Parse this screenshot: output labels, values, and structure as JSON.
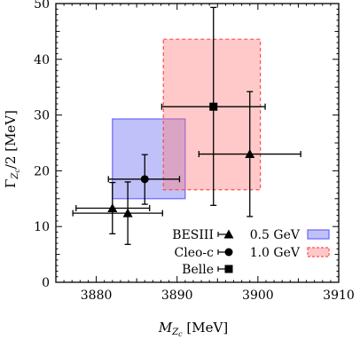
{
  "chart_data": {
    "type": "scatter",
    "xlabel": {
      "main": "M",
      "sub": "Z",
      "subsub": "c",
      "unit": " [MeV]"
    },
    "ylabel": {
      "main": "Γ",
      "sub": "Z",
      "subsub": "c",
      "tail": "/2 [MeV]"
    },
    "xlim": [
      3875,
      3910
    ],
    "ylim": [
      0,
      50
    ],
    "xticks": [
      3880,
      3890,
      3900,
      3910
    ],
    "yticks": [
      0,
      10,
      20,
      30,
      40,
      50
    ],
    "grid": false,
    "legend_position": "bottom-right",
    "series": [
      {
        "name": "BESIII",
        "marker": "triangle",
        "points": [
          {
            "x": 3882.0,
            "y": 13.3,
            "xerr": [
              3877.5,
              3886.6
            ],
            "yerr": [
              8.7,
              17.9
            ]
          },
          {
            "x": 3883.9,
            "y": 12.4,
            "xerr": [
              3877.1,
              3888.2
            ],
            "yerr": [
              6.8,
              18.0
            ]
          },
          {
            "x": 3899.0,
            "y": 23.0,
            "xerr": [
              3892.7,
              3905.3
            ],
            "yerr": [
              11.8,
              34.2
            ]
          }
        ]
      },
      {
        "name": "Cleo-c",
        "marker": "circle",
        "points": [
          {
            "x": 3886.0,
            "y": 18.5,
            "xerr": [
              3881.5,
              3890.3
            ],
            "yerr": [
              14.0,
              22.9
            ]
          }
        ]
      },
      {
        "name": "Belle",
        "marker": "square",
        "points": [
          {
            "x": 3894.5,
            "y": 31.5,
            "xerr": [
              3888.1,
              3900.9
            ],
            "yerr": [
              13.8,
              49.3
            ]
          }
        ]
      }
    ],
    "bands": [
      {
        "name": "0.5 GeV",
        "color": "#6666ff",
        "fill": "rgba(100,100,240,0.40)",
        "style": "solid",
        "x": [
          3882.0,
          3891.0
        ],
        "y": [
          15.0,
          29.3
        ]
      },
      {
        "name": "1.0 GeV",
        "color": "#ff4d4d",
        "fill": "rgba(255,120,120,0.40)",
        "style": "dashed",
        "x": [
          3888.3,
          3900.3
        ],
        "y": [
          16.6,
          43.6
        ]
      }
    ]
  }
}
